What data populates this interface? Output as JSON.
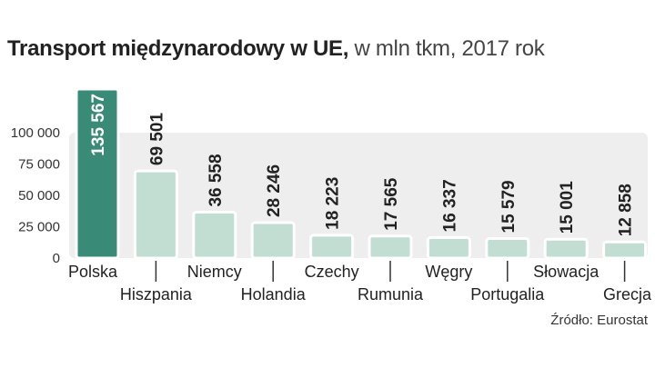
{
  "header": {
    "title": "Transport międzynarodowy w UE,",
    "subtitle": "w mln tkm, 2017 rok"
  },
  "source": "Źródło: Eurostat",
  "chart_data": {
    "type": "bar",
    "title": "Transport międzynarodowy w UE,",
    "subtitle": "w mln tkm, 2017 rok",
    "categories": [
      "Polska",
      "Hiszpania",
      "Niemcy",
      "Holandia",
      "Czechy",
      "Rumunia",
      "Węgry",
      "Portugalia",
      "Słowacja",
      "Grecja"
    ],
    "values": [
      135567,
      69501,
      36558,
      28246,
      18223,
      17565,
      16337,
      15579,
      15001,
      12858
    ],
    "value_labels": [
      "135 567",
      "69 501",
      "36 558",
      "28 246",
      "18 223",
      "17 565",
      "16 337",
      "15 579",
      "15 001",
      "12 858"
    ],
    "y_ticks": [
      0,
      25000,
      50000,
      75000,
      100000
    ],
    "y_tick_labels": [
      "0",
      "25 000",
      "50 000",
      "75 000",
      "100 000"
    ],
    "ylim": [
      0,
      100000
    ],
    "xlabel": "",
    "ylabel": "",
    "colors": {
      "highlight": "#3a8a78",
      "bar": "#c2ddd2",
      "plot_band": "#eeeeee",
      "text": "#222222"
    }
  }
}
